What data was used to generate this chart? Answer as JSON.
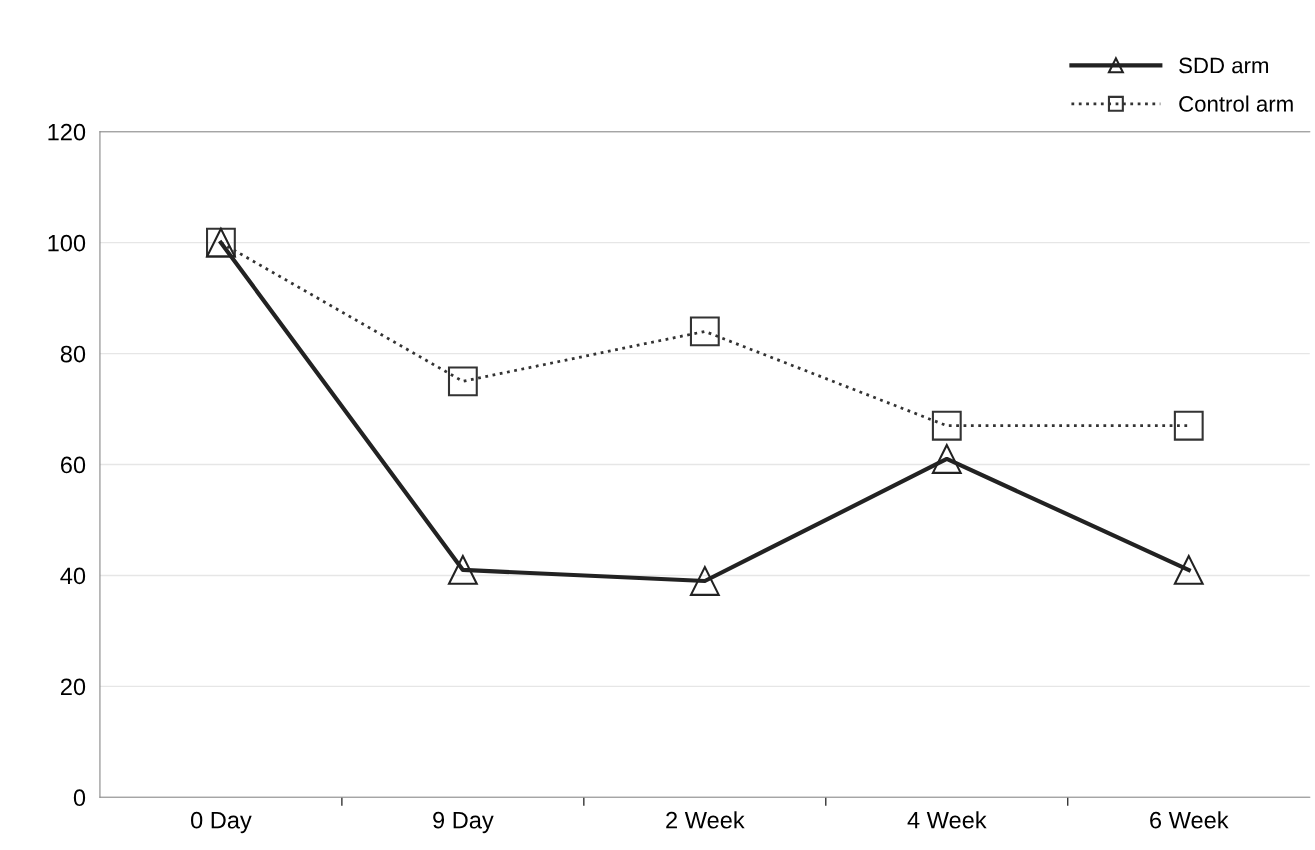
{
  "chart_data": {
    "type": "line",
    "categories": [
      "0 Day",
      "9 Day",
      "2 Week",
      "4 Week",
      "6 Week"
    ],
    "series": [
      {
        "name": "SDD arm",
        "color": "#222222",
        "values": [
          100,
          41,
          39,
          61,
          41
        ],
        "marker": "triangle",
        "line_style": "solid"
      },
      {
        "name": "Control arm",
        "color": "#333333",
        "values": [
          100,
          75,
          84,
          67,
          67
        ],
        "marker": "square",
        "line_style": "dotted"
      }
    ],
    "ylim": [
      0,
      120
    ],
    "yticks": [
      0,
      20,
      40,
      60,
      80,
      100,
      120
    ],
    "grid": "y",
    "legend": "top right"
  }
}
